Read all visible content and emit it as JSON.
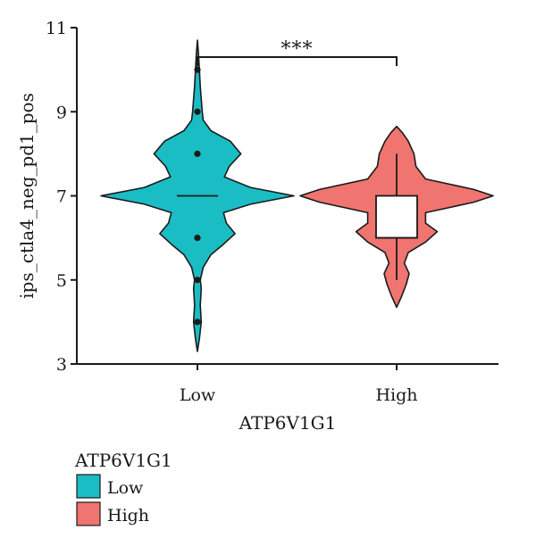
{
  "chart_data": {
    "type": "violin",
    "xlabel": "ATP6V1G1",
    "ylabel": "ips_ctla4_neg_pd1_pos",
    "ylim": [
      3,
      11
    ],
    "yticks": [
      3,
      5,
      7,
      9,
      11
    ],
    "categories": [
      "Low",
      "High"
    ],
    "grid": false,
    "series": [
      {
        "name": "Low",
        "color": "#1ABDC4",
        "range": [
          3.3,
          10.7
        ],
        "box": {
          "median": 7,
          "q1": 7,
          "q3": 7,
          "whisker_low": 7,
          "whisker_high": 7
        },
        "outliers": [
          10,
          9,
          8,
          6,
          5,
          4
        ],
        "density_profile": [
          [
            3.3,
            0.0
          ],
          [
            3.6,
            0.02
          ],
          [
            4.0,
            0.04
          ],
          [
            4.4,
            0.03
          ],
          [
            4.8,
            0.04
          ],
          [
            5.0,
            0.03
          ],
          [
            5.3,
            0.06
          ],
          [
            5.6,
            0.14
          ],
          [
            5.85,
            0.27
          ],
          [
            6.1,
            0.39
          ],
          [
            6.35,
            0.3
          ],
          [
            6.6,
            0.27
          ],
          [
            6.8,
            0.55
          ],
          [
            7.0,
            1.0
          ],
          [
            7.2,
            0.55
          ],
          [
            7.45,
            0.28
          ],
          [
            7.7,
            0.33
          ],
          [
            8.0,
            0.45
          ],
          [
            8.3,
            0.34
          ],
          [
            8.55,
            0.14
          ],
          [
            8.8,
            0.06
          ],
          [
            9.0,
            0.05
          ],
          [
            9.3,
            0.04
          ],
          [
            9.6,
            0.03
          ],
          [
            10.0,
            0.02
          ],
          [
            10.4,
            0.01
          ],
          [
            10.7,
            0.0
          ]
        ]
      },
      {
        "name": "High",
        "color": "#F07470",
        "range": [
          4.35,
          8.65
        ],
        "box": {
          "median": 6,
          "q1": 6,
          "q3": 7,
          "whisker_low": 5,
          "whisker_high": 8
        },
        "outliers": [],
        "density_profile": [
          [
            4.35,
            0.0
          ],
          [
            4.6,
            0.05
          ],
          [
            4.9,
            0.1
          ],
          [
            5.15,
            0.13
          ],
          [
            5.4,
            0.08
          ],
          [
            5.65,
            0.12
          ],
          [
            5.9,
            0.3
          ],
          [
            6.15,
            0.42
          ],
          [
            6.35,
            0.3
          ],
          [
            6.6,
            0.3
          ],
          [
            6.85,
            0.8
          ],
          [
            7.0,
            1.0
          ],
          [
            7.15,
            0.8
          ],
          [
            7.4,
            0.3
          ],
          [
            7.7,
            0.2
          ],
          [
            8.0,
            0.18
          ],
          [
            8.3,
            0.12
          ],
          [
            8.5,
            0.06
          ],
          [
            8.65,
            0.0
          ]
        ]
      }
    ],
    "significance": {
      "label": "***",
      "between": [
        "Low",
        "High"
      ],
      "y": 10.3
    },
    "legend": {
      "title": "ATP6V1G1",
      "placement": "bottom-left",
      "items": [
        {
          "label": "Low",
          "color": "#1ABDC4"
        },
        {
          "label": "High",
          "color": "#F07470"
        }
      ]
    }
  }
}
